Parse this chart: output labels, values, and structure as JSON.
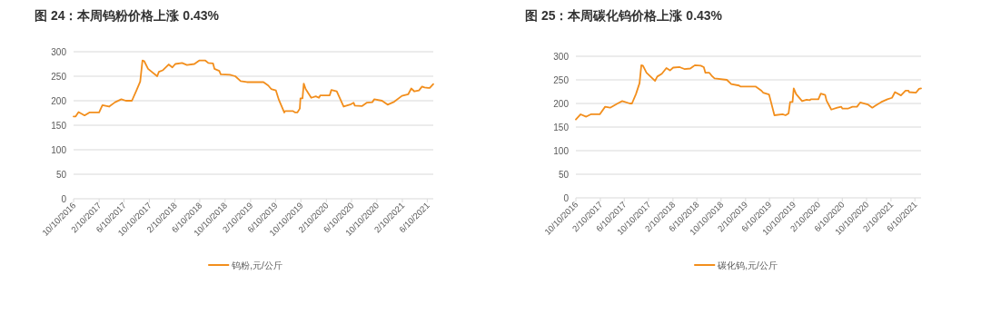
{
  "chart_data": [
    {
      "type": "line",
      "title": "图 24：本周钨粉价格上涨 0.43%",
      "legend": "bottom",
      "grid": "y",
      "marker": "none",
      "line_style": "solid",
      "xlim": [
        "2016-10-10",
        "2021-07-09"
      ],
      "xticks": [
        {
          "value": "2016-10-10",
          "label": "10/10/2016"
        },
        {
          "value": "2017-02-10",
          "label": "2/10/2017"
        },
        {
          "value": "2017-06-10",
          "label": "6/10/2017"
        },
        {
          "value": "2017-10-10",
          "label": "10/10/2017"
        },
        {
          "value": "2018-02-10",
          "label": "2/10/2018"
        },
        {
          "value": "2018-06-10",
          "label": "6/10/2018"
        },
        {
          "value": "2018-10-10",
          "label": "10/10/2018"
        },
        {
          "value": "2019-02-10",
          "label": "2/10/2019"
        },
        {
          "value": "2019-06-10",
          "label": "6/10/2019"
        },
        {
          "value": "2019-10-10",
          "label": "10/10/2019"
        },
        {
          "value": "2020-02-10",
          "label": "2/10/2020"
        },
        {
          "value": "2020-06-10",
          "label": "6/10/2020"
        },
        {
          "value": "2020-10-10",
          "label": "10/10/2020"
        },
        {
          "value": "2021-02-10",
          "label": "2/10/2021"
        },
        {
          "value": "2021-06-10",
          "label": "6/10/2021"
        }
      ],
      "ylim": [
        0,
        300
      ],
      "yticks": [
        0,
        50,
        100,
        150,
        200,
        250,
        300
      ],
      "series": [
        {
          "name": "钨粉,元/公斤",
          "color": "#f28e1c",
          "x": [
            "2016-10-10",
            "2016-10-20",
            "2016-11-03",
            "2016-11-15",
            "2016-12-02",
            "2016-12-25",
            "2017-02-10",
            "2017-02-26",
            "2017-03-30",
            "2017-04-28",
            "2017-05-28",
            "2017-06-19",
            "2017-07-18",
            "2017-08-09",
            "2017-08-27",
            "2017-09-07",
            "2017-09-15",
            "2017-10-04",
            "2017-11-17",
            "2017-11-25",
            "2017-12-13",
            "2018-01-11",
            "2018-01-29",
            "2018-02-12",
            "2018-03-17",
            "2018-04-09",
            "2018-05-15",
            "2018-06-07",
            "2018-07-07",
            "2018-07-21",
            "2018-08-13",
            "2018-08-20",
            "2018-09-12",
            "2018-09-19",
            "2018-11-02",
            "2018-11-28",
            "2018-12-24",
            "2019-01-23",
            "2019-04-13",
            "2019-05-06",
            "2019-05-20",
            "2019-06-12",
            "2019-06-26",
            "2019-07-22",
            "2019-07-26",
            "2019-09-01",
            "2019-09-13",
            "2019-09-23",
            "2019-10-05",
            "2019-10-08",
            "2019-10-18",
            "2019-10-24",
            "2019-11-02",
            "2019-11-29",
            "2019-12-21",
            "2020-01-05",
            "2020-01-12",
            "2020-02-26",
            "2020-03-05",
            "2020-03-31",
            "2020-05-03",
            "2020-06-08",
            "2020-06-20",
            "2020-06-26",
            "2020-07-30",
            "2020-08-22",
            "2020-09-18",
            "2020-09-28",
            "2020-11-04",
            "2020-12-01",
            "2021-01-02",
            "2021-02-08",
            "2021-03-10",
            "2021-03-25",
            "2021-04-09",
            "2021-05-01",
            "2021-05-16",
            "2021-05-28",
            "2021-06-14",
            "2021-06-22",
            "2021-07-09"
          ],
          "values": [
            168,
            168,
            177,
            174,
            170,
            176,
            176,
            191,
            188,
            197,
            203,
            200,
            200,
            221,
            239,
            282,
            281,
            265,
            250,
            259,
            262,
            274,
            268,
            275,
            277,
            273,
            275,
            282,
            282,
            277,
            276,
            265,
            261,
            254,
            253,
            250,
            240,
            238,
            238,
            231,
            224,
            221,
            202,
            176,
            179,
            179,
            176,
            176,
            184,
            205,
            205,
            235,
            224,
            206,
            209,
            206,
            211,
            211,
            222,
            219,
            188,
            193,
            196,
            190,
            189,
            196,
            197,
            203,
            200,
            192,
            198,
            210,
            213,
            225,
            219,
            221,
            229,
            227,
            226,
            226,
            234
          ]
        }
      ]
    },
    {
      "type": "line",
      "title": "图 25：本周碳化钨价格上涨 0.43%",
      "legend": "bottom",
      "grid": "y",
      "marker": "none",
      "line_style": "solid",
      "xlim": [
        "2016-10-10",
        "2021-07-11"
      ],
      "xticks": [
        {
          "value": "2016-10-10",
          "label": "10/10/2016"
        },
        {
          "value": "2017-02-10",
          "label": "2/10/2017"
        },
        {
          "value": "2017-06-10",
          "label": "6/10/2017"
        },
        {
          "value": "2017-10-10",
          "label": "10/10/2017"
        },
        {
          "value": "2018-02-10",
          "label": "2/10/2018"
        },
        {
          "value": "2018-06-10",
          "label": "6/10/2018"
        },
        {
          "value": "2018-10-10",
          "label": "10/10/2018"
        },
        {
          "value": "2019-02-10",
          "label": "2/10/2019"
        },
        {
          "value": "2019-06-10",
          "label": "6/10/2019"
        },
        {
          "value": "2019-10-10",
          "label": "10/10/2019"
        },
        {
          "value": "2020-02-10",
          "label": "2/10/2020"
        },
        {
          "value": "2020-06-10",
          "label": "6/10/2020"
        },
        {
          "value": "2020-10-10",
          "label": "10/10/2020"
        },
        {
          "value": "2021-02-10",
          "label": "2/10/2021"
        },
        {
          "value": "2021-06-10",
          "label": "6/10/2021"
        }
      ],
      "ylim": [
        0,
        300
      ],
      "yticks": [
        0,
        50,
        100,
        150,
        200,
        250,
        300
      ],
      "series": [
        {
          "name": "碳化钨,元/公斤",
          "color": "#f28e1c",
          "x": [
            "2016-10-10",
            "2016-11-03",
            "2016-12-01",
            "2016-12-24",
            "2017-02-07",
            "2017-03-06",
            "2017-03-31",
            "2017-05-08",
            "2017-05-31",
            "2017-07-08",
            "2017-07-19",
            "2017-08-08",
            "2017-08-26",
            "2017-09-04",
            "2017-09-12",
            "2017-09-30",
            "2017-11-12",
            "2017-11-23",
            "2017-12-16",
            "2018-01-08",
            "2018-01-26",
            "2018-02-11",
            "2018-03-16",
            "2018-04-08",
            "2018-05-08",
            "2018-05-31",
            "2018-06-30",
            "2018-07-15",
            "2018-07-23",
            "2018-08-12",
            "2018-08-23",
            "2018-09-07",
            "2018-11-08",
            "2018-11-30",
            "2019-01-08",
            "2019-01-15",
            "2019-04-01",
            "2019-05-01",
            "2019-05-09",
            "2019-06-08",
            "2019-07-05",
            "2019-08-15",
            "2019-08-30",
            "2019-09-14",
            "2019-09-22",
            "2019-10-04",
            "2019-10-10",
            "2019-10-22",
            "2019-11-21",
            "2019-12-14",
            "2019-12-29",
            "2020-01-06",
            "2020-02-11",
            "2020-02-23",
            "2020-03-16",
            "2020-03-23",
            "2020-04-16",
            "2020-05-16",
            "2020-06-05",
            "2020-06-11",
            "2020-07-08",
            "2020-07-31",
            "2020-08-23",
            "2020-09-08",
            "2020-10-16",
            "2020-11-08",
            "2020-11-23",
            "2020-12-23",
            "2021-01-23",
            "2021-02-15",
            "2021-03-02",
            "2021-04-01",
            "2021-04-24",
            "2021-05-09",
            "2021-05-12",
            "2021-06-16",
            "2021-07-01",
            "2021-07-11"
          ],
          "values": [
            166,
            177,
            172,
            177,
            177,
            193,
            191,
            200,
            205,
            200,
            200,
            220,
            243,
            281,
            280,
            265,
            248,
            257,
            263,
            275,
            270,
            276,
            277,
            273,
            274,
            281,
            280,
            277,
            265,
            265,
            259,
            253,
            250,
            241,
            238,
            236,
            236,
            227,
            223,
            219,
            175,
            177,
            175,
            179,
            203,
            203,
            232,
            220,
            205,
            208,
            207,
            209,
            209,
            221,
            218,
            206,
            187,
            191,
            193,
            189,
            189,
            193,
            193,
            202,
            198,
            191,
            195,
            203,
            209,
            212,
            224,
            217,
            227,
            227,
            224,
            223,
            231,
            232
          ]
        }
      ]
    }
  ]
}
